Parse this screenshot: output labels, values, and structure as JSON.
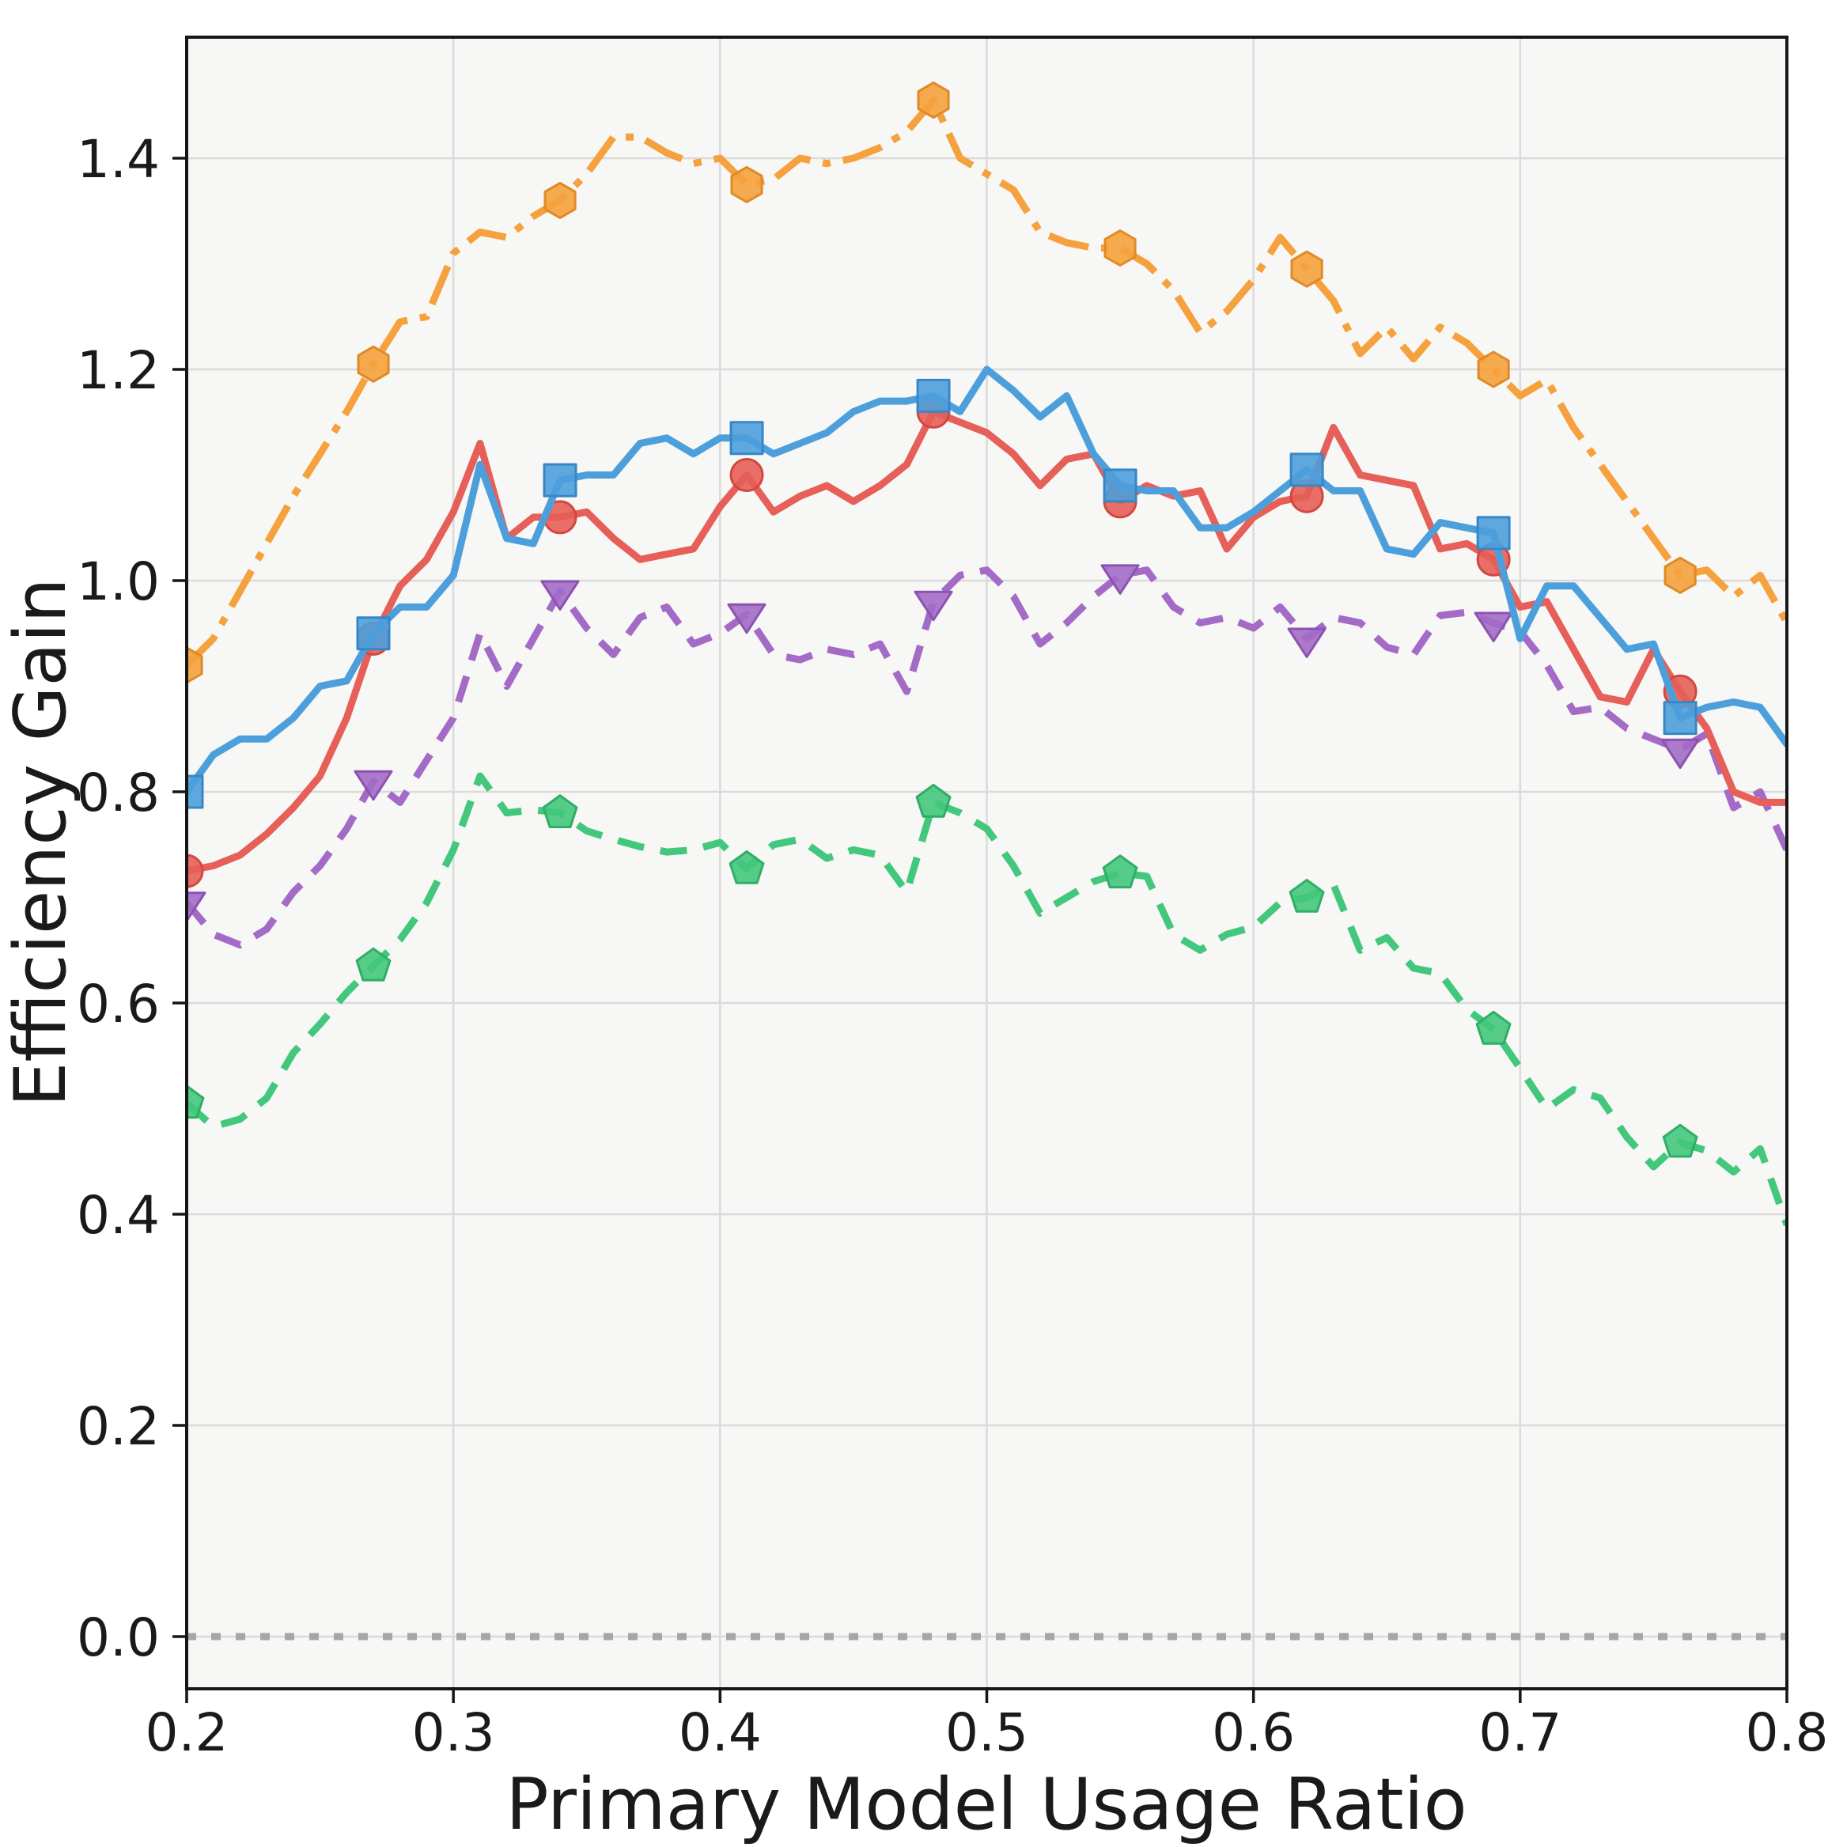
{
  "chart_data": {
    "type": "line",
    "title": "",
    "xlabel": "Primary Model Usage Ratio",
    "ylabel": "Efficiency Gain",
    "xlim": [
      0.2,
      0.8
    ],
    "ylim": [
      -0.0494,
      1.5146
    ],
    "x_ticks": [
      0.2,
      0.3,
      0.4,
      0.5,
      0.6,
      0.7,
      0.8
    ],
    "x_tick_labels": [
      "0.2",
      "0.3",
      "0.4",
      "0.5",
      "0.6",
      "0.7",
      "0.8"
    ],
    "y_ticks": [
      0.0,
      0.2,
      0.4,
      0.6,
      0.8,
      1.0,
      1.2,
      1.4
    ],
    "y_tick_labels": [
      "0.0",
      "0.2",
      "0.4",
      "0.6",
      "0.8",
      "1.0",
      "1.2",
      "1.4"
    ],
    "grid": true,
    "legend_position": "none",
    "plot_background": "#f7f7f6",
    "figure_background": "#ffffff",
    "grid_color": "#dadada",
    "spine_color": "#161616",
    "text_color": "#1a1a1a",
    "zero_line": {
      "y": 0.0,
      "color": "#a6a6a6",
      "style": "dotted",
      "width": 9
    },
    "marker_every": 7,
    "x": [
      0.2,
      0.21,
      0.22,
      0.23,
      0.24,
      0.25,
      0.26,
      0.27,
      0.28,
      0.29,
      0.3,
      0.31,
      0.32,
      0.33,
      0.34,
      0.35,
      0.36,
      0.37,
      0.38,
      0.39,
      0.4,
      0.41,
      0.42,
      0.43,
      0.44,
      0.45,
      0.46,
      0.47,
      0.48,
      0.49,
      0.5,
      0.51,
      0.52,
      0.53,
      0.54,
      0.55,
      0.56,
      0.57,
      0.58,
      0.59,
      0.6,
      0.61,
      0.62,
      0.63,
      0.64,
      0.65,
      0.66,
      0.67,
      0.68,
      0.69,
      0.7,
      0.71,
      0.72,
      0.73,
      0.74,
      0.75,
      0.76,
      0.77,
      0.78,
      0.79,
      0.8
    ],
    "series": [
      {
        "name": "green-dashed-pentagon",
        "color": "#43C77C",
        "edge_color": "#2FAE66",
        "linestyle": "dashed",
        "marker": "pentagon",
        "values": [
          0.505,
          0.483,
          0.49,
          0.51,
          0.553,
          0.58,
          0.61,
          0.635,
          0.66,
          0.695,
          0.745,
          0.815,
          0.78,
          0.783,
          0.78,
          0.763,
          0.755,
          0.748,
          0.743,
          0.745,
          0.752,
          0.727,
          0.75,
          0.755,
          0.737,
          0.745,
          0.74,
          0.705,
          0.79,
          0.78,
          0.765,
          0.73,
          0.685,
          0.7,
          0.715,
          0.723,
          0.72,
          0.665,
          0.65,
          0.665,
          0.672,
          0.695,
          0.7,
          0.712,
          0.65,
          0.662,
          0.633,
          0.628,
          0.594,
          0.575,
          0.538,
          0.5,
          0.518,
          0.51,
          0.473,
          0.445,
          0.468,
          0.46,
          0.44,
          0.462,
          0.39
        ]
      },
      {
        "name": "purple-dashed-triangle",
        "color": "#A36BC6",
        "edge_color": "#8C52B3",
        "linestyle": "dashed",
        "marker": "triangle-down",
        "values": [
          0.695,
          0.665,
          0.655,
          0.67,
          0.705,
          0.73,
          0.765,
          0.81,
          0.79,
          0.83,
          0.87,
          0.95,
          0.9,
          0.945,
          0.99,
          0.955,
          0.93,
          0.965,
          0.975,
          0.94,
          0.95,
          0.968,
          0.93,
          0.925,
          0.935,
          0.93,
          0.94,
          0.895,
          0.98,
          1.005,
          1.01,
          0.985,
          0.94,
          0.96,
          0.985,
          1.005,
          1.01,
          0.975,
          0.96,
          0.965,
          0.955,
          0.975,
          0.945,
          0.965,
          0.96,
          0.937,
          0.93,
          0.967,
          0.97,
          0.96,
          0.952,
          0.92,
          0.876,
          0.88,
          0.86,
          0.85,
          0.84,
          0.855,
          0.785,
          0.8,
          0.745
        ]
      },
      {
        "name": "red-solid-circle",
        "color": "#E65F58",
        "edge_color": "#D24840",
        "linestyle": "solid",
        "marker": "circle",
        "values": [
          0.725,
          0.73,
          0.74,
          0.76,
          0.785,
          0.815,
          0.87,
          0.945,
          0.995,
          1.02,
          1.065,
          1.13,
          1.04,
          1.06,
          1.06,
          1.065,
          1.04,
          1.02,
          1.025,
          1.03,
          1.07,
          1.1,
          1.065,
          1.08,
          1.09,
          1.075,
          1.09,
          1.11,
          1.16,
          1.15,
          1.14,
          1.12,
          1.09,
          1.115,
          1.12,
          1.075,
          1.09,
          1.08,
          1.085,
          1.03,
          1.06,
          1.075,
          1.08,
          1.145,
          1.1,
          1.095,
          1.09,
          1.03,
          1.035,
          1.02,
          0.975,
          0.98,
          0.935,
          0.89,
          0.885,
          0.935,
          0.895,
          0.86,
          0.8,
          0.79,
          0.79
        ]
      },
      {
        "name": "blue-solid-square",
        "color": "#4D9FDB",
        "edge_color": "#3587C7",
        "linestyle": "solid",
        "marker": "square",
        "values": [
          0.8,
          0.835,
          0.85,
          0.85,
          0.87,
          0.9,
          0.905,
          0.95,
          0.975,
          0.975,
          1.005,
          1.11,
          1.04,
          1.035,
          1.095,
          1.1,
          1.1,
          1.13,
          1.135,
          1.12,
          1.135,
          1.135,
          1.12,
          1.13,
          1.14,
          1.16,
          1.17,
          1.17,
          1.175,
          1.16,
          1.2,
          1.18,
          1.155,
          1.175,
          1.12,
          1.09,
          1.085,
          1.085,
          1.05,
          1.05,
          1.065,
          1.085,
          1.105,
          1.085,
          1.085,
          1.03,
          1.025,
          1.055,
          1.05,
          1.045,
          0.945,
          0.995,
          0.995,
          0.965,
          0.935,
          0.94,
          0.87,
          0.88,
          0.885,
          0.88,
          0.845
        ]
      },
      {
        "name": "orange-dashdot-hexagon",
        "color": "#F5A13D",
        "edge_color": "#E08A26",
        "linestyle": "dashdot",
        "marker": "hexagon",
        "values": [
          0.92,
          0.945,
          0.99,
          1.035,
          1.08,
          1.12,
          1.16,
          1.205,
          1.245,
          1.25,
          1.31,
          1.33,
          1.325,
          1.345,
          1.36,
          1.385,
          1.42,
          1.42,
          1.405,
          1.395,
          1.4,
          1.375,
          1.38,
          1.4,
          1.395,
          1.4,
          1.41,
          1.425,
          1.455,
          1.4,
          1.385,
          1.37,
          1.33,
          1.32,
          1.315,
          1.315,
          1.3,
          1.275,
          1.235,
          1.255,
          1.285,
          1.325,
          1.295,
          1.265,
          1.215,
          1.24,
          1.21,
          1.24,
          1.225,
          1.2,
          1.175,
          1.19,
          1.145,
          1.11,
          1.075,
          1.04,
          1.005,
          1.01,
          0.985,
          1.005,
          0.96
        ]
      }
    ]
  }
}
